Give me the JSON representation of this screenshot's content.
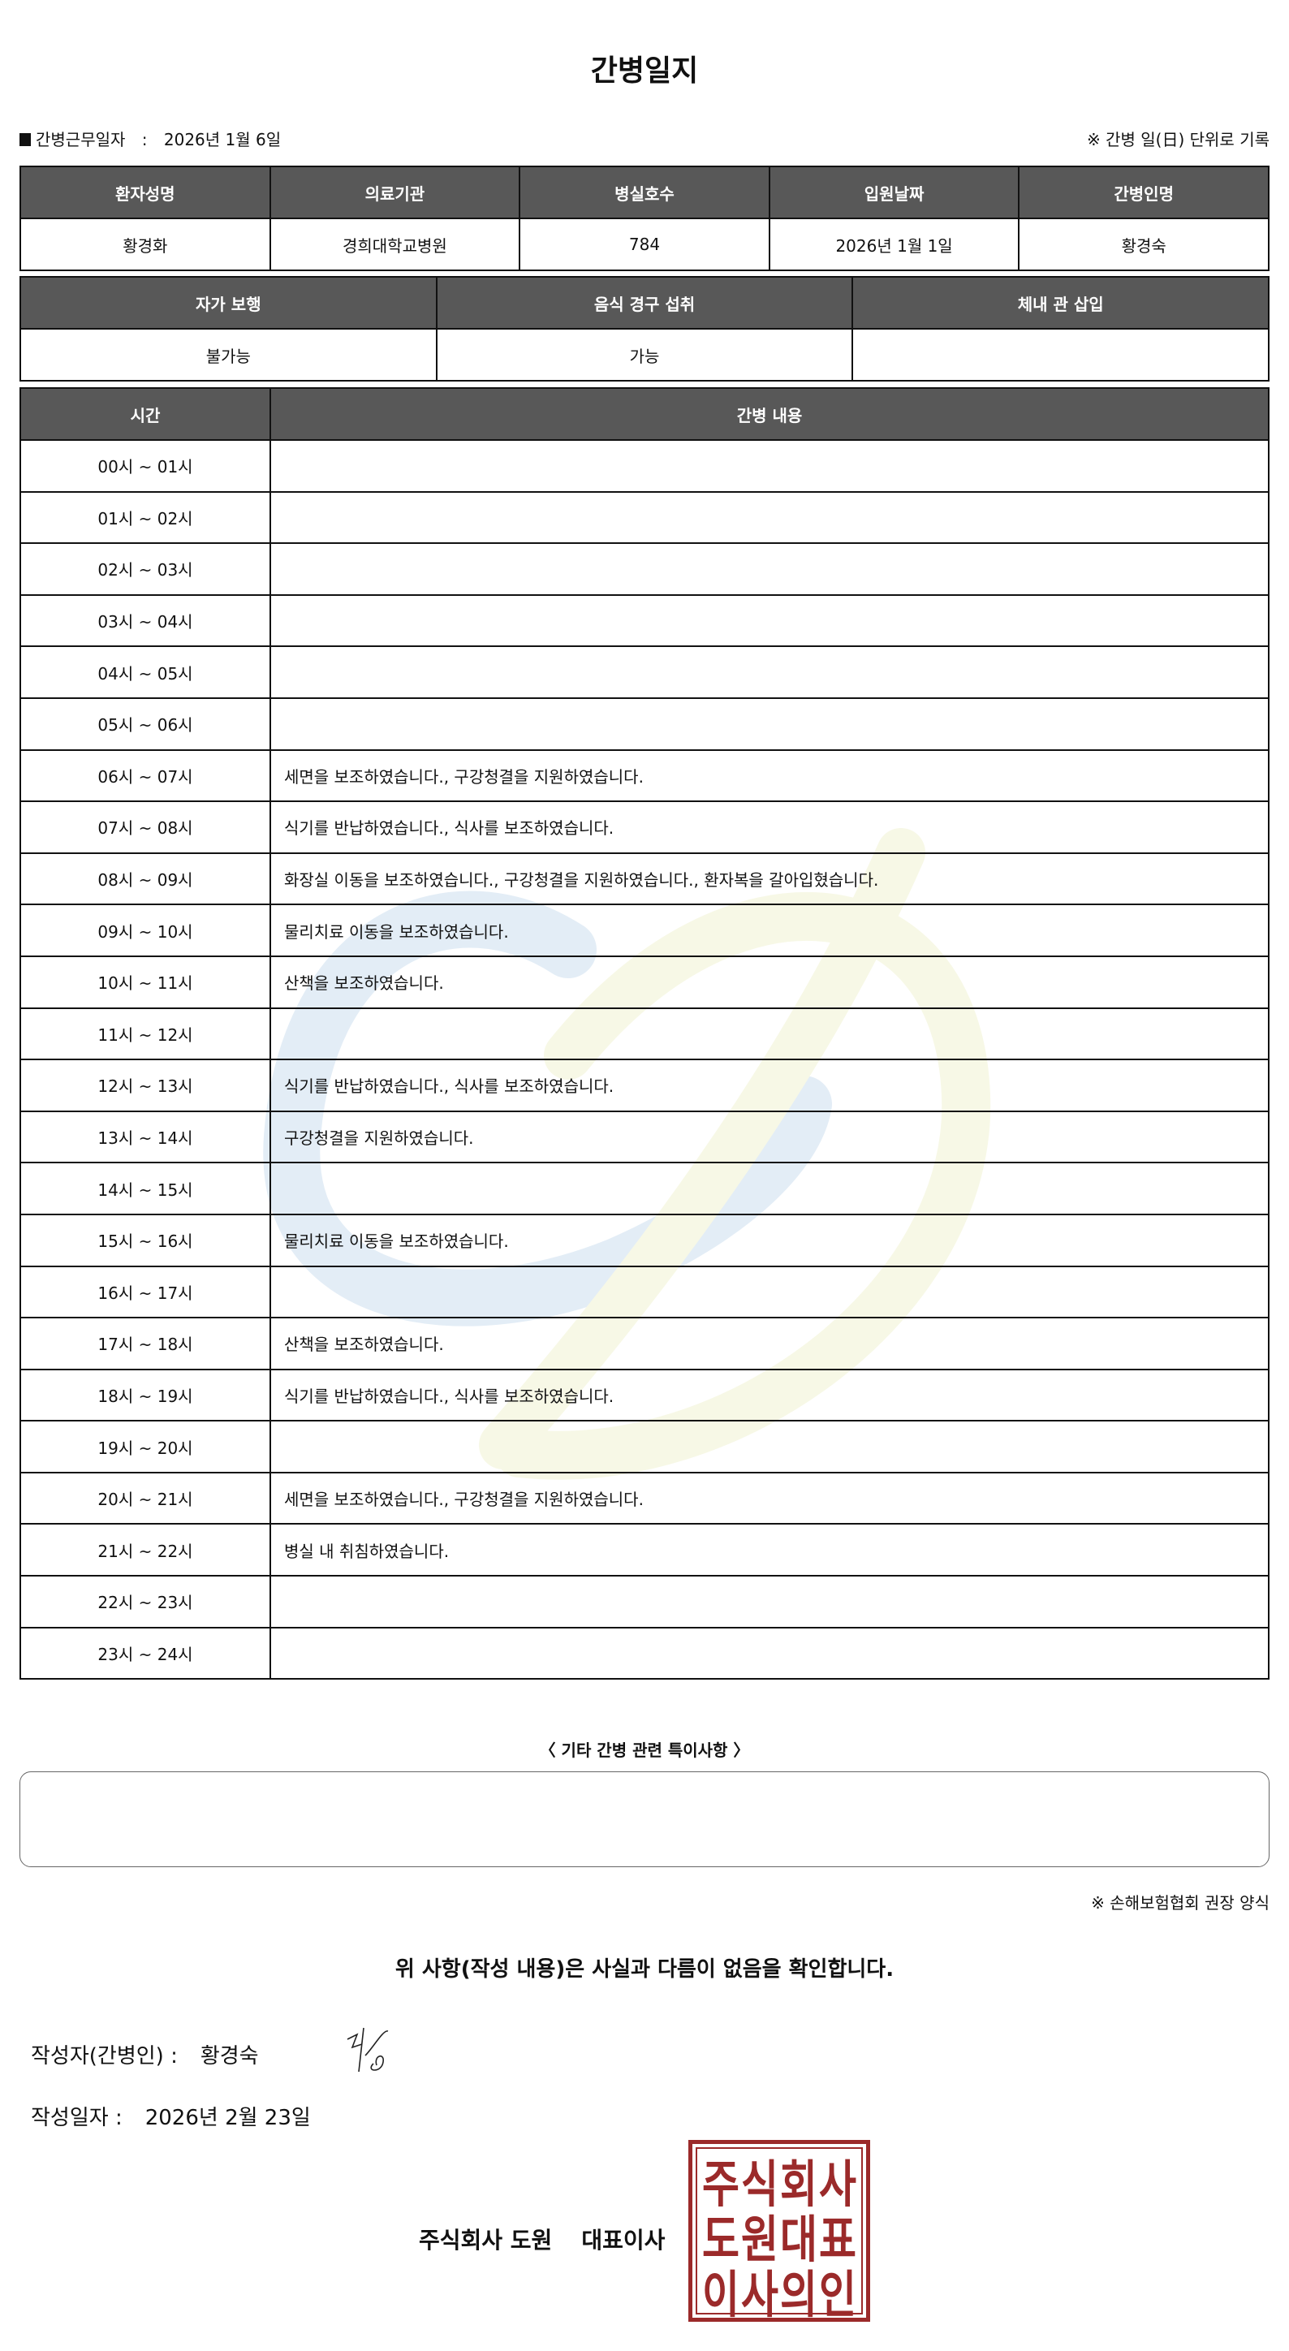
{
  "title": "간병일지",
  "work_date_label": "간병근무일자",
  "work_date_separator": ":",
  "work_date": "2026년 1월 6일",
  "record_note": "※ 간병 일(日) 단위로 기록",
  "patient_table": {
    "headers": [
      "환자성명",
      "의료기관",
      "병실호수",
      "입원날짜",
      "간병인명"
    ],
    "values": [
      "황경화",
      "경희대학교병원",
      "784",
      "2026년 1월 1일",
      "황경숙"
    ]
  },
  "status_table": {
    "headers": [
      "자가 보행",
      "음식 경구 섭취",
      "체내 관 삽입"
    ],
    "values": [
      "불가능",
      "가능",
      ""
    ]
  },
  "care_log": {
    "headers": [
      "시간",
      "간병 내용"
    ],
    "rows": [
      {
        "time": "00시 ~ 01시",
        "content": ""
      },
      {
        "time": "01시 ~ 02시",
        "content": ""
      },
      {
        "time": "02시 ~ 03시",
        "content": ""
      },
      {
        "time": "03시 ~ 04시",
        "content": ""
      },
      {
        "time": "04시 ~ 05시",
        "content": ""
      },
      {
        "time": "05시 ~ 06시",
        "content": ""
      },
      {
        "time": "06시 ~ 07시",
        "content": "세면을 보조하였습니다., 구강청결을 지원하였습니다."
      },
      {
        "time": "07시 ~ 08시",
        "content": "식기를 반납하였습니다., 식사를 보조하였습니다."
      },
      {
        "time": "08시 ~ 09시",
        "content": "화장실 이동을 보조하였습니다., 구강청결을 지원하였습니다., 환자복을 갈아입혔습니다."
      },
      {
        "time": "09시 ~ 10시",
        "content": "물리치료 이동을 보조하였습니다."
      },
      {
        "time": "10시 ~ 11시",
        "content": "산책을 보조하였습니다."
      },
      {
        "time": "11시 ~ 12시",
        "content": ""
      },
      {
        "time": "12시 ~ 13시",
        "content": "식기를 반납하였습니다., 식사를 보조하였습니다."
      },
      {
        "time": "13시 ~ 14시",
        "content": "구강청결을 지원하였습니다."
      },
      {
        "time": "14시 ~ 15시",
        "content": ""
      },
      {
        "time": "15시 ~ 16시",
        "content": "물리치료 이동을 보조하였습니다."
      },
      {
        "time": "16시 ~ 17시",
        "content": ""
      },
      {
        "time": "17시 ~ 18시",
        "content": "산책을 보조하였습니다."
      },
      {
        "time": "18시 ~ 19시",
        "content": "식기를 반납하였습니다., 식사를 보조하였습니다."
      },
      {
        "time": "19시 ~ 20시",
        "content": ""
      },
      {
        "time": "20시 ~ 21시",
        "content": "세면을 보조하였습니다., 구강청결을 지원하였습니다."
      },
      {
        "time": "21시 ~ 22시",
        "content": "병실 내 취침하였습니다."
      },
      {
        "time": "22시 ~ 23시",
        "content": ""
      },
      {
        "time": "23시 ~ 24시",
        "content": ""
      }
    ]
  },
  "special_notes_label": "〈 기타 간병 관련 특이사항 〉",
  "special_notes": "",
  "form_note": "※ 손해보험협회 권장 양식",
  "confirmation": "위 사항(작성 내용)은 사실과 다름이 없음을 확인합니다.",
  "writer_label": "작성자(간병인) :",
  "writer_name": "황경숙",
  "written_date_label": "작성일자 :",
  "written_date": "2026년 2월 23일",
  "company_name": "주식회사 도원",
  "company_title": "대표이사",
  "seal": {
    "lines": [
      "주식회사",
      "도원대표",
      "이사의인"
    ],
    "color": "#9b2a2a"
  },
  "watermark_colors": {
    "blue": "#e3edf6",
    "yellow": "#f7f8e6"
  }
}
